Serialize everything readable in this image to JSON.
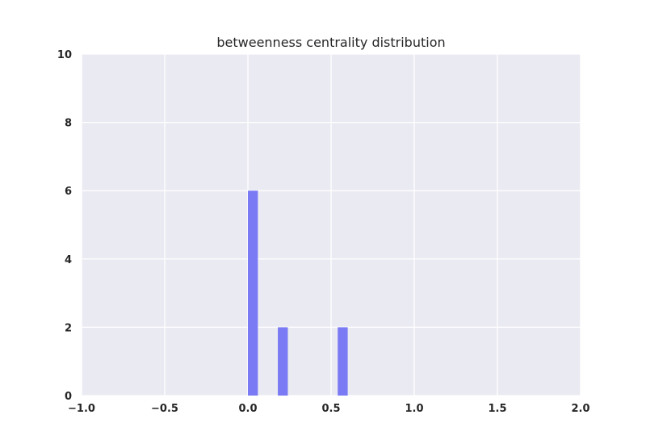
{
  "chart_data": {
    "type": "bar",
    "title": "betweenness centrality distribution",
    "xlabel": "",
    "ylabel": "",
    "xlim": [
      -1.0,
      2.0
    ],
    "ylim": [
      0,
      10
    ],
    "x_ticks": [
      "−1.0",
      "−0.5",
      "0.0",
      "0.5",
      "1.0",
      "1.5",
      "2.0"
    ],
    "y_ticks": [
      "0",
      "2",
      "4",
      "6",
      "8",
      "10"
    ],
    "bins": [
      {
        "x0": 0.0,
        "x1": 0.06,
        "count": 6
      },
      {
        "x0": 0.18,
        "x1": 0.24,
        "count": 2
      },
      {
        "x0": 0.54,
        "x1": 0.6,
        "count": 2
      }
    ],
    "bar_color": "#7a7af5",
    "background_color": "#eaeaf2",
    "grid": true,
    "legend": "none"
  }
}
